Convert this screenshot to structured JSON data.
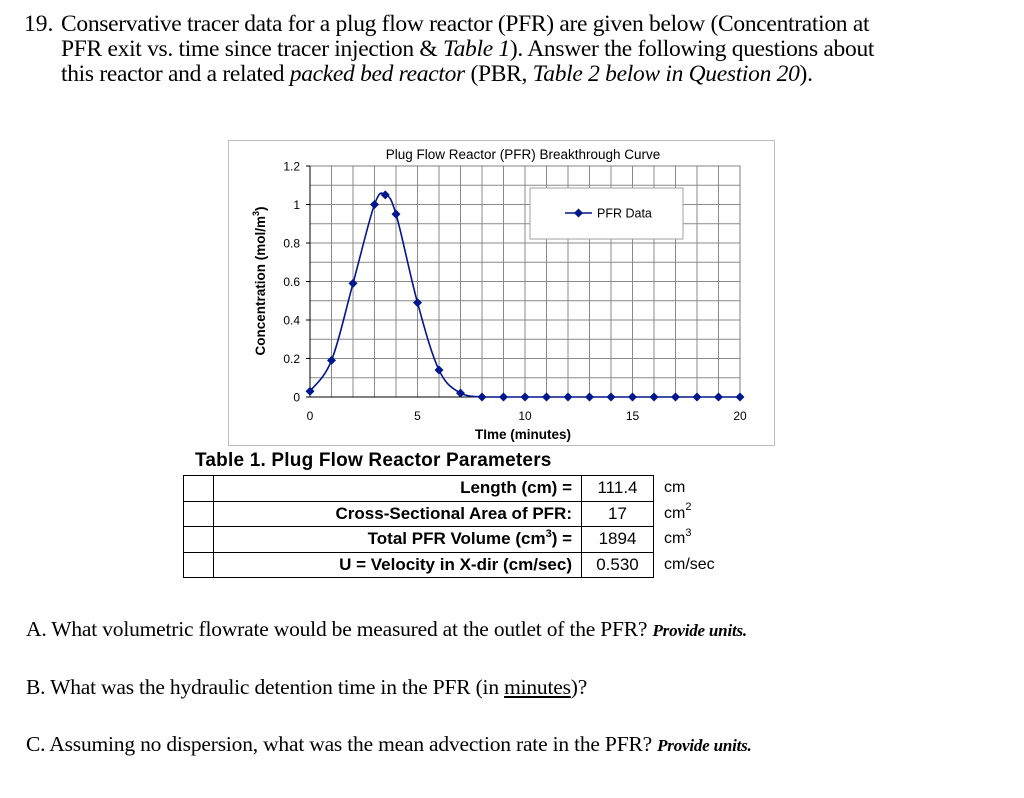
{
  "question": {
    "number": "19.",
    "line1": "Conservative tracer data for a plug flow reactor (PFR) are given below (Concentration at",
    "line2_pre": "PFR exit vs. time since tracer injection & ",
    "line2_italic": "Table 1",
    "line2_post": ").  Answer the following questions about",
    "line3_pre": "this reactor and a related ",
    "line3_italic1": "packed bed reactor",
    "line3_mid": " (PBR, ",
    "line3_italic2": "Table 2 below in Question 20",
    "line3_post": ")."
  },
  "chart_data": {
    "type": "line",
    "title": "Plug Flow Reactor (PFR) Breakthrough Curve",
    "xlabel": "TIme (minutes)",
    "ylabel": "Concentration (mol/m3)",
    "xlim": [
      0,
      20
    ],
    "ylim": [
      0,
      1.2
    ],
    "x_ticks": [
      0,
      5,
      10,
      15,
      20
    ],
    "y_ticks": [
      0,
      0.2,
      0.4,
      0.6,
      0.8,
      1,
      1.2
    ],
    "x_tick_labels": [
      "0",
      "5",
      "10",
      "15",
      "20"
    ],
    "y_tick_labels": [
      "0",
      "0.2",
      "0.4",
      "0.6",
      "0.8",
      "1",
      "1.2"
    ],
    "grid": true,
    "legend_position": "upper right (inside plot)",
    "series": [
      {
        "name": "PFR Data",
        "color": "#00168c",
        "marker": "diamond",
        "x": [
          0,
          1,
          2,
          3,
          3.5,
          4,
          5,
          6,
          7,
          8,
          9,
          10,
          11,
          12,
          13,
          14,
          15,
          16,
          17,
          18,
          19,
          20
        ],
        "values": [
          0.03,
          0.19,
          0.59,
          1.0,
          1.05,
          0.95,
          0.49,
          0.14,
          0.02,
          0,
          0,
          0,
          0,
          0,
          0,
          0,
          0,
          0,
          0,
          0,
          0,
          0
        ]
      }
    ]
  },
  "table": {
    "title": "Table 1. Plug Flow Reactor Parameters",
    "rows": [
      {
        "label": "Length (cm) =",
        "value": "111.4",
        "unit": "cm",
        "unit_sup": ""
      },
      {
        "label": "Cross-Sectional Area of PFR:",
        "value": "17",
        "unit": "cm",
        "unit_sup": "2"
      },
      {
        "label_pre": "Total PFR Volume (cm",
        "label_sup": "3",
        "label_post": ") =",
        "value": "1894",
        "unit": "cm",
        "unit_sup": "3"
      },
      {
        "label": "U = Velocity in X-dir (cm/sec)",
        "value": "0.530",
        "unit": "cm/sec",
        "unit_sup": ""
      }
    ]
  },
  "subquestions": {
    "a": {
      "text": "A. What volumetric flowrate would be measured at the outlet of the PFR? ",
      "hint": "Provide units."
    },
    "b": {
      "pre": "B. What was the hydraulic detention time in the PFR (in ",
      "underlined": "minutes",
      "post": ")?"
    },
    "c": {
      "text": "C. Assuming no dispersion, what was the mean advection rate in the PFR? ",
      "hint": "Provide units."
    }
  }
}
